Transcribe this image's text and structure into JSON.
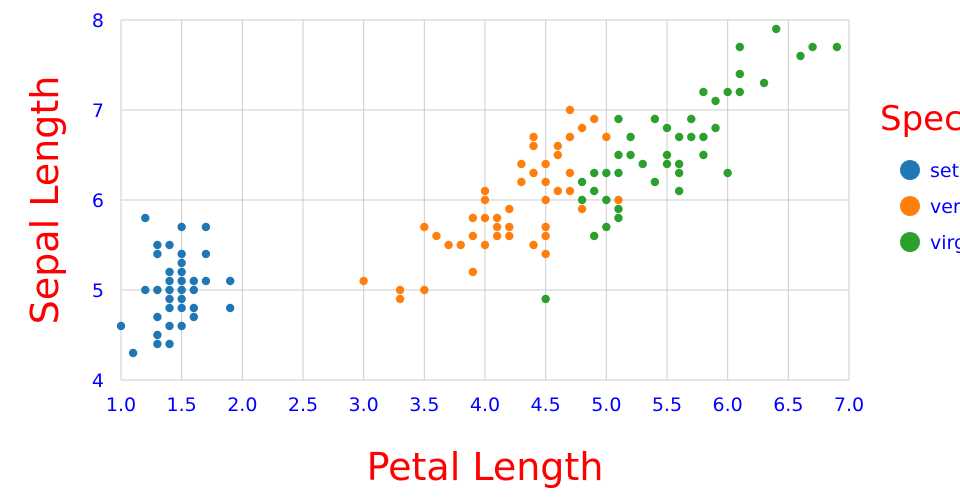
{
  "chart_data": {
    "type": "scatter",
    "xlabel": "Petal Length",
    "ylabel": "Sepal Length",
    "xlim": [
      1.0,
      7.0
    ],
    "ylim": [
      4,
      8
    ],
    "x_ticks": [
      "1.0",
      "1.5",
      "2.0",
      "2.5",
      "3.0",
      "3.5",
      "4.0",
      "4.5",
      "5.0",
      "5.5",
      "6.0",
      "6.5",
      "7.0"
    ],
    "y_ticks": [
      "4",
      "5",
      "6",
      "7",
      "8"
    ],
    "grid": true,
    "legend": {
      "title": "Spec",
      "placement": "right"
    },
    "colors": {
      "axis_title": "#ff0000",
      "tick_text": "#0000ff",
      "grid": "#cccccc"
    },
    "series": [
      {
        "name": "set",
        "color": "#1f77b4",
        "points": [
          [
            1.0,
            4.6
          ],
          [
            1.1,
            4.3
          ],
          [
            1.2,
            5.8
          ],
          [
            1.2,
            5.0
          ],
          [
            1.3,
            5.5
          ],
          [
            1.3,
            5.4
          ],
          [
            1.3,
            5.0
          ],
          [
            1.3,
            4.7
          ],
          [
            1.3,
            4.5
          ],
          [
            1.3,
            4.4
          ],
          [
            1.4,
            5.5
          ],
          [
            1.4,
            5.2
          ],
          [
            1.4,
            5.1
          ],
          [
            1.4,
            5.0
          ],
          [
            1.4,
            4.9
          ],
          [
            1.4,
            4.8
          ],
          [
            1.4,
            4.6
          ],
          [
            1.4,
            4.4
          ],
          [
            1.5,
            5.7
          ],
          [
            1.5,
            5.4
          ],
          [
            1.5,
            5.3
          ],
          [
            1.5,
            5.2
          ],
          [
            1.5,
            5.1
          ],
          [
            1.5,
            5.0
          ],
          [
            1.5,
            4.9
          ],
          [
            1.5,
            4.8
          ],
          [
            1.5,
            4.6
          ],
          [
            1.6,
            5.1
          ],
          [
            1.6,
            5.0
          ],
          [
            1.6,
            4.8
          ],
          [
            1.6,
            4.7
          ],
          [
            1.7,
            5.7
          ],
          [
            1.7,
            5.4
          ],
          [
            1.7,
            5.1
          ],
          [
            1.9,
            5.1
          ],
          [
            1.9,
            4.8
          ]
        ]
      },
      {
        "name": "ver",
        "color": "#ff7f0e",
        "points": [
          [
            3.0,
            5.1
          ],
          [
            3.3,
            5.0
          ],
          [
            3.3,
            4.9
          ],
          [
            3.5,
            5.7
          ],
          [
            3.5,
            5.0
          ],
          [
            3.6,
            5.6
          ],
          [
            3.7,
            5.5
          ],
          [
            3.8,
            5.5
          ],
          [
            3.9,
            5.8
          ],
          [
            3.9,
            5.6
          ],
          [
            3.9,
            5.2
          ],
          [
            4.0,
            6.1
          ],
          [
            4.0,
            6.0
          ],
          [
            4.0,
            5.8
          ],
          [
            4.0,
            5.5
          ],
          [
            4.1,
            5.8
          ],
          [
            4.1,
            5.7
          ],
          [
            4.1,
            5.6
          ],
          [
            4.2,
            5.9
          ],
          [
            4.2,
            5.7
          ],
          [
            4.2,
            5.6
          ],
          [
            4.3,
            6.4
          ],
          [
            4.3,
            6.2
          ],
          [
            4.4,
            6.7
          ],
          [
            4.4,
            6.6
          ],
          [
            4.4,
            6.3
          ],
          [
            4.4,
            5.5
          ],
          [
            4.5,
            6.4
          ],
          [
            4.5,
            6.2
          ],
          [
            4.5,
            6.0
          ],
          [
            4.5,
            5.7
          ],
          [
            4.5,
            5.6
          ],
          [
            4.5,
            5.4
          ],
          [
            4.6,
            6.6
          ],
          [
            4.6,
            6.5
          ],
          [
            4.6,
            6.1
          ],
          [
            4.7,
            7.0
          ],
          [
            4.7,
            6.7
          ],
          [
            4.7,
            6.3
          ],
          [
            4.7,
            6.1
          ],
          [
            4.8,
            6.8
          ],
          [
            4.8,
            5.9
          ],
          [
            4.9,
            6.9
          ],
          [
            5.0,
            6.7
          ],
          [
            5.1,
            6.0
          ]
        ]
      },
      {
        "name": "virg",
        "color": "#2ca02c",
        "points": [
          [
            4.5,
            4.9
          ],
          [
            4.8,
            6.2
          ],
          [
            4.8,
            6.0
          ],
          [
            4.9,
            6.3
          ],
          [
            4.9,
            6.1
          ],
          [
            4.9,
            5.6
          ],
          [
            5.0,
            6.3
          ],
          [
            5.0,
            6.0
          ],
          [
            5.0,
            5.7
          ],
          [
            5.1,
            6.9
          ],
          [
            5.1,
            6.5
          ],
          [
            5.1,
            6.3
          ],
          [
            5.1,
            5.9
          ],
          [
            5.1,
            5.8
          ],
          [
            5.2,
            6.7
          ],
          [
            5.2,
            6.5
          ],
          [
            5.3,
            6.4
          ],
          [
            5.4,
            6.9
          ],
          [
            5.4,
            6.2
          ],
          [
            5.5,
            6.8
          ],
          [
            5.5,
            6.5
          ],
          [
            5.5,
            6.4
          ],
          [
            5.6,
            6.7
          ],
          [
            5.6,
            6.4
          ],
          [
            5.6,
            6.3
          ],
          [
            5.6,
            6.1
          ],
          [
            5.7,
            6.9
          ],
          [
            5.7,
            6.7
          ],
          [
            5.8,
            7.2
          ],
          [
            5.8,
            6.7
          ],
          [
            5.8,
            6.5
          ],
          [
            5.9,
            7.1
          ],
          [
            5.9,
            6.8
          ],
          [
            6.0,
            7.2
          ],
          [
            6.0,
            6.3
          ],
          [
            6.1,
            7.7
          ],
          [
            6.1,
            7.4
          ],
          [
            6.1,
            7.2
          ],
          [
            6.3,
            7.3
          ],
          [
            6.4,
            7.9
          ],
          [
            6.6,
            7.6
          ],
          [
            6.7,
            7.7
          ],
          [
            6.9,
            7.7
          ]
        ]
      }
    ]
  }
}
